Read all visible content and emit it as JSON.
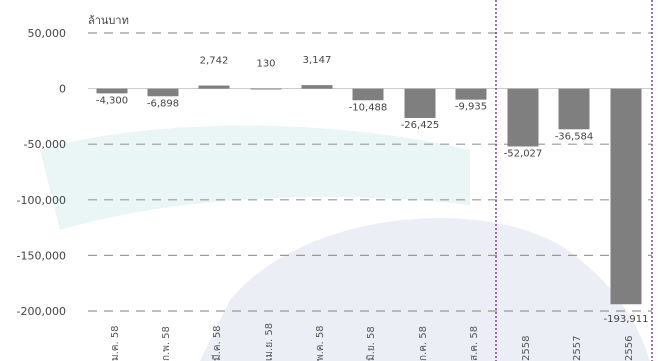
{
  "chart_data": {
    "type": "bar",
    "unit_label": "ล้านบาท",
    "categories": [
      "ม.ค. 58",
      "ก.พ. 58",
      "มี.ค. 58",
      "เม.ย. 58",
      "พ.ค. 58",
      "มิ.ย. 58",
      "ก.ค. 58",
      "ส.ค. 58",
      "2558",
      "2557",
      "2556"
    ],
    "values": [
      -4300,
      -6898,
      2742,
      130,
      3147,
      -10488,
      -26425,
      -9935,
      -52027,
      -36584,
      -193911
    ],
    "value_labels": [
      "-4,300",
      "-6,898",
      "2,742",
      "130",
      "3,147",
      "-10,488",
      "-26,425",
      "-9,935",
      "-52,027",
      "-36,584",
      "-193,911"
    ],
    "yticks": [
      50000,
      0,
      -50000,
      -100000,
      -150000,
      -200000
    ],
    "ytick_labels": [
      "50,000",
      "0",
      "-50,000",
      "-100,000",
      "-150,000",
      "-200,000"
    ],
    "ylim": [
      -200000,
      50000
    ],
    "grid": true,
    "colors": {
      "bar": "#7f7f7f",
      "grid": "#999999",
      "divider": "#7a1f8f"
    }
  }
}
